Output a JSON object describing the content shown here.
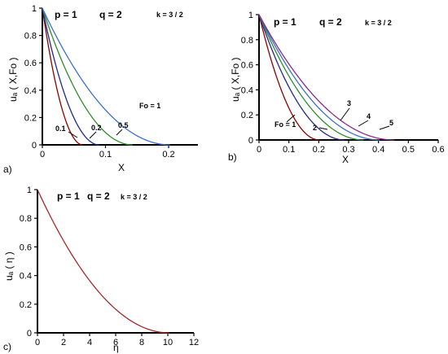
{
  "chart_data": [
    {
      "type": "line",
      "panel": "a)",
      "title_p": "p = 1",
      "title_q": "q = 2",
      "title_k": "k = 3 / 2",
      "xlabel": "X",
      "ylabel": "uₐ ( X,Fo )",
      "xlim": [
        0,
        0.24
      ],
      "ylim": [
        0,
        1
      ],
      "xticks": [
        "0",
        "0.1",
        "0.2"
      ],
      "xtick_values": [
        0,
        0.1,
        0.2
      ],
      "yticks": [
        "0",
        "0.2",
        "0.4",
        "0.6",
        "0.8",
        "1"
      ],
      "ytick_values": [
        0,
        0.2,
        0.4,
        0.6,
        0.8,
        1
      ],
      "series": [
        {
          "name": "0.1",
          "color": "#8b0000",
          "end": 0.064,
          "exponent": 2
        },
        {
          "name": "0.2",
          "color": "#1f2a8f",
          "end": 0.09,
          "exponent": 2
        },
        {
          "name": "0.5",
          "color": "#2e8b2e",
          "end": 0.143,
          "exponent": 2
        },
        {
          "name": "Fo = 1",
          "color": "#3a6fd0",
          "end": 0.202,
          "exponent": 2
        }
      ]
    },
    {
      "type": "line",
      "panel": "b)",
      "title_p": "p = 1",
      "title_q": "q = 2",
      "title_k": "k = 3 / 2",
      "xlabel": "X",
      "ylabel": "uₐ ( X,Fo )",
      "xlim": [
        0,
        0.6
      ],
      "ylim": [
        0,
        1
      ],
      "xticks": [
        "0",
        "0.1",
        "0.2",
        "0.3",
        "0.4",
        "0.5",
        "0.6"
      ],
      "xtick_values": [
        0,
        0.1,
        0.2,
        0.3,
        0.4,
        0.5,
        0.6
      ],
      "yticks": [
        "0",
        "0.2",
        "0.4",
        "0.6",
        "0.8",
        "1"
      ],
      "ytick_values": [
        0,
        0.2,
        0.4,
        0.6,
        0.8,
        1
      ],
      "series": [
        {
          "name": "Fo = 1",
          "color": "#8b0000",
          "end": 0.202,
          "exponent": 2
        },
        {
          "name": "2",
          "color": "#1f2a8f",
          "end": 0.286,
          "exponent": 2
        },
        {
          "name": "3",
          "color": "#2e8b2e",
          "end": 0.35,
          "exponent": 2
        },
        {
          "name": "4",
          "color": "#3a6fd0",
          "end": 0.404,
          "exponent": 2
        },
        {
          "name": "5",
          "color": "#8a2a8a",
          "end": 0.452,
          "exponent": 2
        }
      ]
    },
    {
      "type": "line",
      "panel": "c)",
      "title_p": "p = 1",
      "title_q": "q = 2",
      "title_k": "k = 3 / 2",
      "xlabel": "η",
      "ylabel": "uₐ ( η )",
      "xlim": [
        0,
        12
      ],
      "ylim": [
        0,
        1
      ],
      "xticks": [
        "0",
        "2",
        "4",
        "6",
        "8",
        "10",
        "12"
      ],
      "xtick_values": [
        0,
        2,
        4,
        6,
        8,
        10,
        12
      ],
      "yticks": [
        "0",
        "0.2",
        "0.4",
        "0.6",
        "0.8",
        "1"
      ],
      "ytick_values": [
        0,
        0.2,
        0.4,
        0.6,
        0.8,
        1
      ],
      "series": [
        {
          "name": "",
          "color": "#a52a2a",
          "end": 10.1,
          "exponent": 2
        }
      ]
    }
  ]
}
